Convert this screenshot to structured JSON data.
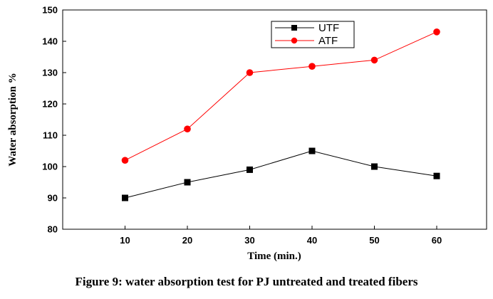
{
  "caption": "Figure 9: water absorption test for PJ untreated and treated fibers",
  "chart_data": {
    "type": "line",
    "x": [
      10,
      20,
      30,
      40,
      50,
      60
    ],
    "xlabel": "Time (min.)",
    "ylabel": "Water absorption %",
    "xlim": [
      0,
      68
    ],
    "ylim": [
      80,
      150
    ],
    "xticks": [
      "10",
      "20",
      "30",
      "40",
      "50",
      "60"
    ],
    "yticks": [
      "80",
      "90",
      "100",
      "110",
      "120",
      "130",
      "140",
      "150"
    ],
    "legend_position": "top-right",
    "grid": false,
    "series": [
      {
        "name": "UTF",
        "values": [
          90,
          95,
          99,
          105,
          100,
          97
        ],
        "color": "#000000",
        "marker": "square"
      },
      {
        "name": "ATF",
        "values": [
          102,
          112,
          130,
          132,
          134,
          143
        ],
        "color": "#ff0000",
        "marker": "circle"
      }
    ]
  }
}
